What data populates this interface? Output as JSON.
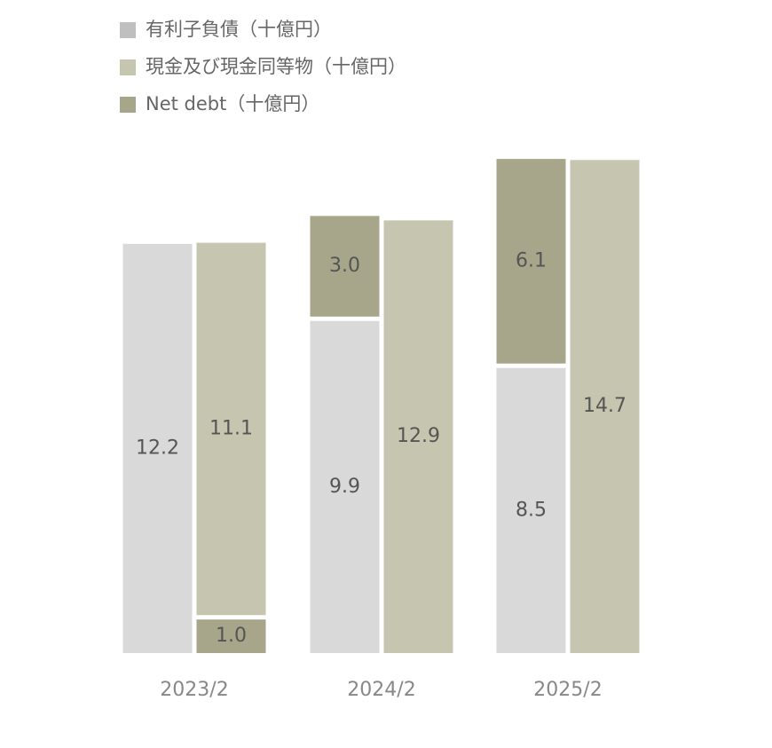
{
  "chart_data": {
    "type": "bar",
    "categories": [
      "2023/2",
      "2024/2",
      "2025/2"
    ],
    "series": [
      {
        "name": "有利子負債（十億円）",
        "color": "#d9d9d9",
        "legend_color": "#bfbfbf",
        "values": [
          12.2,
          9.9,
          8.5
        ]
      },
      {
        "name": "現金及び現金同等物（十億円）",
        "color": "#c6c6b0",
        "values": [
          11.1,
          12.9,
          14.7
        ]
      },
      {
        "name": "Net debt（十億円）",
        "color": "#a7a68a",
        "values": [
          1.0,
          3.0,
          6.1
        ],
        "value_labels": [
          "1.0",
          "3.0",
          "6.1"
        ]
      }
    ]
  }
}
